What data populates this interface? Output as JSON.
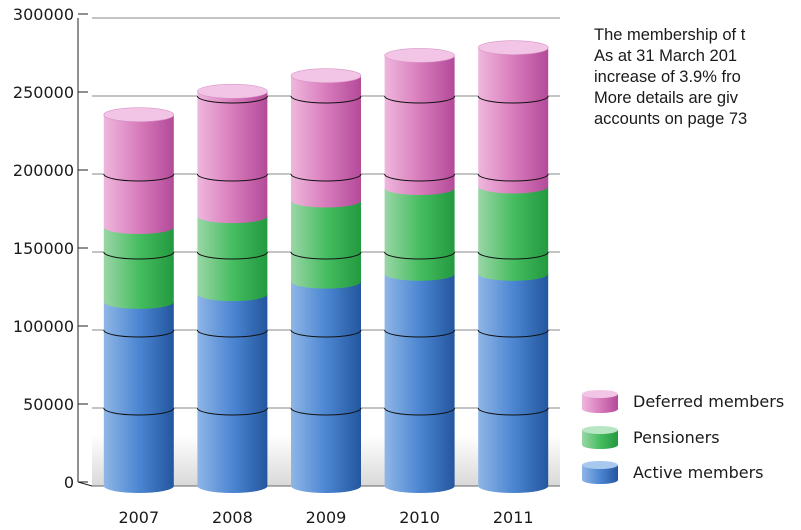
{
  "chart_data": {
    "type": "bar",
    "stacked": true,
    "style": "3d-cylinder",
    "categories": [
      "2007",
      "2008",
      "2009",
      "2010",
      "2011"
    ],
    "series": [
      {
        "name": "Active members",
        "values": [
          118000,
          123000,
          131000,
          136000,
          136000
        ],
        "color": "#3a72c4"
      },
      {
        "name": "Pensioners",
        "values": [
          48000,
          50000,
          52000,
          55000,
          56000
        ],
        "color": "#3fbf5a"
      },
      {
        "name": "Deferred members",
        "values": [
          72000,
          80000,
          80000,
          85000,
          89000
        ],
        "color": "#d676b9"
      }
    ],
    "ylim": [
      0,
      300000
    ],
    "yticks": [
      "0",
      "50000",
      "100000",
      "150000",
      "200000",
      "250000",
      "300000"
    ],
    "grid": true,
    "legend_position": "bottom-right",
    "title": "",
    "xlabel": "",
    "ylabel": ""
  },
  "note": {
    "lines": [
      "The membership of t",
      "As at 31 March 201",
      "increase of 3.9% fro",
      "More details are giv",
      "accounts on page 73"
    ]
  }
}
